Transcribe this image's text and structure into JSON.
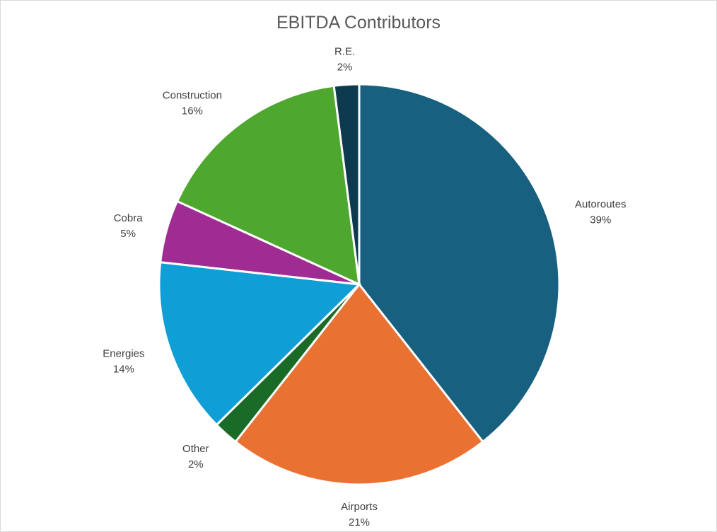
{
  "chart_data": {
    "type": "pie",
    "title": "EBITDA Contributors",
    "slices": [
      {
        "label": "Autoroutes",
        "value": 39,
        "value_label": "39%",
        "color": "#17607f"
      },
      {
        "label": "Airports",
        "value": 21,
        "value_label": "21%",
        "color": "#e97132"
      },
      {
        "label": "Other",
        "value": 2,
        "value_label": "2%",
        "color": "#1a6b27"
      },
      {
        "label": "Energies",
        "value": 14,
        "value_label": "14%",
        "color": "#0f9ed5"
      },
      {
        "label": "Cobra",
        "value": 5,
        "value_label": "5%",
        "color": "#a02b93"
      },
      {
        "label": "Construction",
        "value": 16,
        "value_label": "16%",
        "color": "#4ea72e"
      },
      {
        "label": "R.E.",
        "value": 2,
        "value_label": "2%",
        "color": "#0e3a50"
      }
    ],
    "data_labels": "outside",
    "legend": "none"
  }
}
